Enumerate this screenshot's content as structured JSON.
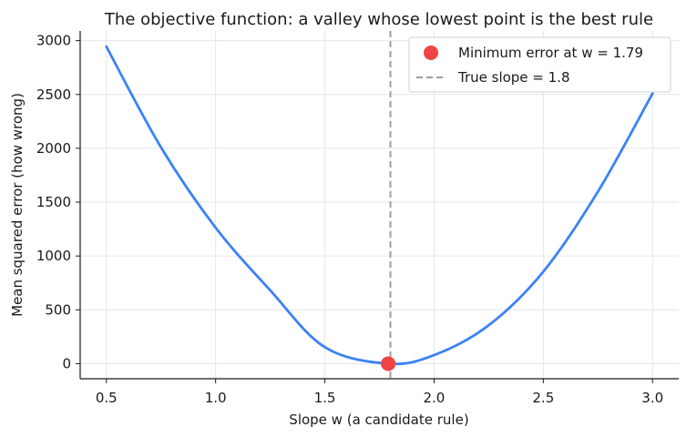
{
  "chart_data": {
    "type": "line",
    "title": "The objective function: a valley whose lowest point is the best rule",
    "xlabel": "Slope w (a candidate rule)",
    "ylabel": "Mean squared error (how wrong)",
    "xlim": [
      0.38,
      3.12
    ],
    "ylim": [
      -140,
      3090
    ],
    "xticks": [
      0.5,
      1.0,
      1.5,
      2.0,
      2.5,
      3.0
    ],
    "xtick_labels": [
      "0.5",
      "1.0",
      "1.5",
      "2.0",
      "2.5",
      "3.0"
    ],
    "yticks": [
      0,
      500,
      1000,
      1500,
      2000,
      2500,
      3000
    ],
    "ytick_labels": [
      "0",
      "500",
      "1000",
      "1500",
      "2000",
      "2500",
      "3000"
    ],
    "grid": true,
    "legend_position": "top-right",
    "series": [
      {
        "name": "",
        "color": "#3b82f6",
        "x": [
          0.5,
          0.75,
          1.0,
          1.25,
          1.5,
          1.79,
          2.0,
          2.25,
          2.5,
          2.75,
          3.0
        ],
        "y": [
          2944,
          2009,
          1263,
          681,
          153,
          0,
          79,
          357,
          855,
          1598,
          2509
        ]
      }
    ],
    "minimum_point": {
      "label": "Minimum error at w = 1.79",
      "x": 1.79,
      "y": 0,
      "color": "#ef4444"
    },
    "reference_line": {
      "label": "True slope = 1.8",
      "x": 1.8,
      "color": "#9e9e9e"
    }
  }
}
